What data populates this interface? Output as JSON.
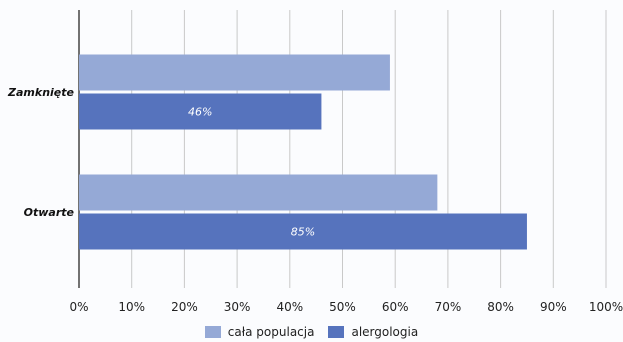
{
  "chart_data": {
    "type": "bar",
    "orientation": "horizontal",
    "categories": [
      "Zamknięte",
      "Otwarte"
    ],
    "series": [
      {
        "name": "cała populacja",
        "color": "#95a9d6",
        "values": [
          59,
          68
        ],
        "labels": [
          "",
          ""
        ]
      },
      {
        "name": "alergologia",
        "color": "#5673bd",
        "values": [
          46,
          85
        ],
        "labels": [
          "46%",
          "85%"
        ]
      }
    ],
    "xlim": [
      0,
      100
    ],
    "xticks": [
      "0%",
      "10%",
      "20%",
      "30%",
      "40%",
      "50%",
      "60%",
      "70%",
      "80%",
      "90%",
      "100%"
    ],
    "grid": true,
    "legend_position": "bottom",
    "gridline_color": "#c9c9c9",
    "axis_color": "#444444"
  }
}
